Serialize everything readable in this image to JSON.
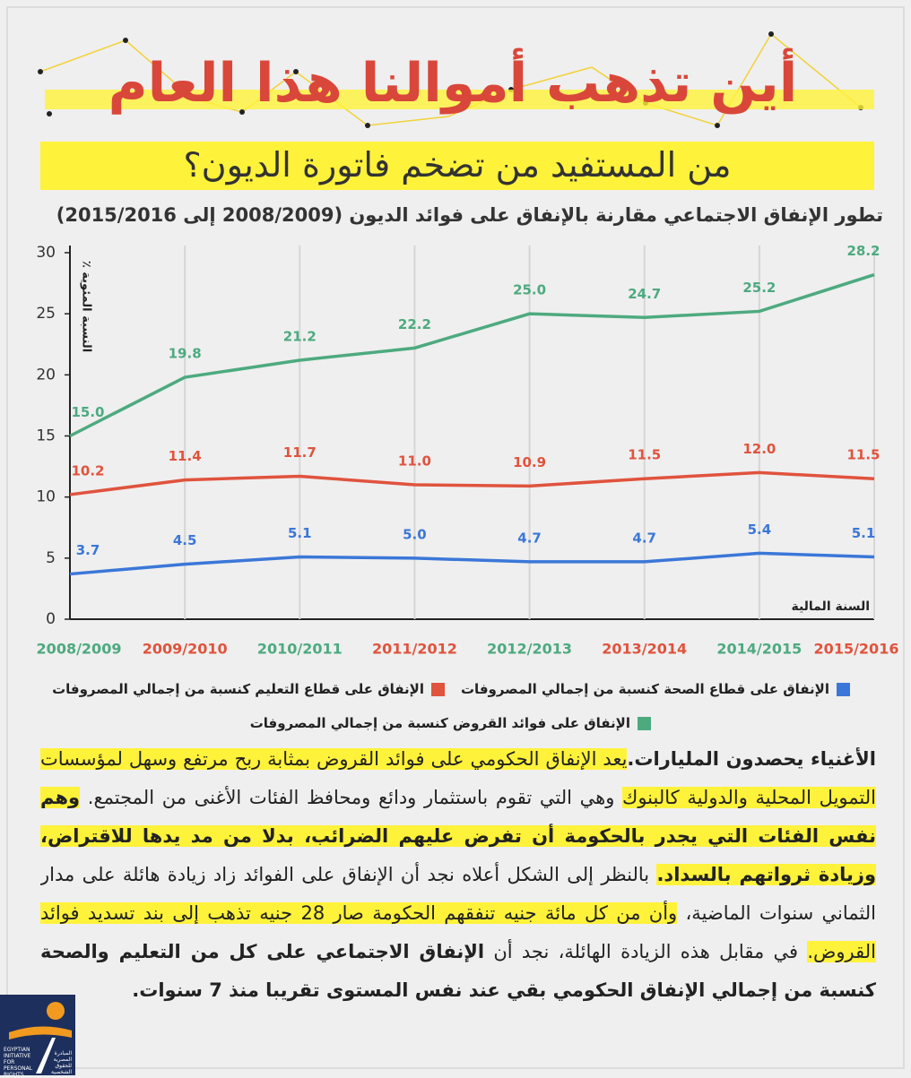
{
  "header": {
    "title": "أين تذهب أموالنا هذا العام",
    "subtitle": "من المستفيد من تضخم فاتورة الديون؟"
  },
  "chart_data": {
    "type": "line",
    "title": "تطور الإنفاق الاجتماعي مقارنة بالإنفاق على فوائد الديون (2008/2009 إلى 2015/2016)",
    "y_label": "٪ النسبة المئوية",
    "x_label": "السنة المالية",
    "categories": [
      "2008/2009",
      "2009/2010",
      "2010/2011",
      "2011/2012",
      "2012/2013",
      "2013/2014",
      "2014/2015",
      "2015/2016"
    ],
    "category_colors": [
      "#4daa7f",
      "#e0533d",
      "#4daa7f",
      "#e0533d",
      "#4daa7f",
      "#e0533d",
      "#4daa7f",
      "#e0533d"
    ],
    "series": [
      {
        "name": "الإنفاق على قطاع الصحة كنسبة من إجمالي المصروفات",
        "color": "#3b77d8",
        "values": [
          3.7,
          4.5,
          5.1,
          5.0,
          4.7,
          4.7,
          5.4,
          5.1
        ],
        "value_labels": [
          "3.7",
          "4.5",
          "5.1",
          "5.0",
          "4.7",
          "4.7",
          "5.4",
          "5.1"
        ]
      },
      {
        "name": "الإنفاق على قطاع التعليم كنسبة من إجمالي المصروفات",
        "color": "#e0533d",
        "values": [
          10.2,
          11.4,
          11.7,
          11.0,
          10.9,
          11.5,
          12.0,
          11.5
        ],
        "value_labels": [
          "10.2",
          "11.4",
          "11.7",
          "11.0",
          "10.9",
          "11.5",
          "12.0",
          "11.5"
        ]
      },
      {
        "name": "الإنفاق على فوائد القروض كنسبة من إجمالي المصروفات",
        "color": "#4daa7f",
        "values": [
          15.0,
          19.8,
          21.2,
          22.2,
          25.0,
          24.7,
          25.2,
          28.2
        ],
        "value_labels": [
          "15.0",
          "19.8",
          "21.2",
          "22.2",
          "25.0",
          "24.7",
          "25.2",
          "28.2"
        ]
      }
    ],
    "ylim": [
      0,
      30
    ],
    "yticks": [
      0,
      5,
      10,
      15,
      20,
      25,
      30
    ],
    "grid": true
  },
  "body": {
    "segments": [
      {
        "text": "الأغنياء يحصدون المليارات.",
        "bold": true,
        "highlight": false
      },
      {
        "text": "يعد الإنفاق الحكومي على فوائد القروض بمثابة ربح مرتفع وسهل لمؤسسات التمويل المحلية والدولية كالبنوك",
        "bold": false,
        "highlight": true
      },
      {
        "text": " وهي التي تقوم باستثمار ودائع ومحافظ الفئات الأغنى من المجتمع. ",
        "bold": false,
        "highlight": false
      },
      {
        "text": "وهم نفس الفئات التي يجدر بالحكومة أن تفرض عليهم الضرائب، بدلا من مد يدها للاقتراض، وزيادة ثرواتهم بالسداد.",
        "bold": true,
        "highlight": true
      },
      {
        "text": " بالنظر إلى الشكل أعلاه نجد أن الإنفاق على الفوائد زاد زيادة هائلة على مدار الثماني سنوات الماضية، ",
        "bold": false,
        "highlight": false
      },
      {
        "text": "وأن من كل مائة جنيه تنفقهم الحكومة صار 28 جنيه تذهب إلى بند تسديد فوائد القروض.",
        "bold": false,
        "highlight": true
      },
      {
        "text": " في مقابل هذه الزيادة الهائلة، نجد أن ",
        "bold": false,
        "highlight": false
      },
      {
        "text": "الإنفاق الاجتماعي على كل من التعليم والصحة كنسبة من إجمالي الإنفاق الحكومي بقي عند نفس المستوى تقريبا منذ 7 سنوات.",
        "bold": true,
        "highlight": false
      }
    ]
  },
  "logo": {
    "english": "EGYPTIAN INITIATIVE FOR PERSONAL RIGHTS",
    "arabic": "المبادرة المصرية للحقوق الشخصية"
  }
}
